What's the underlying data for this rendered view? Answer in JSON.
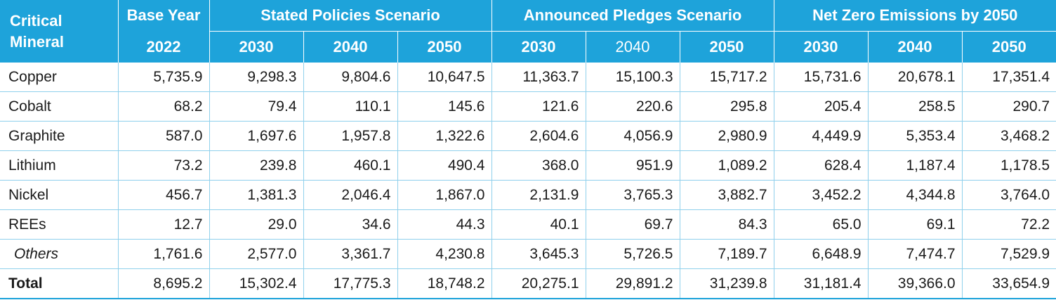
{
  "header": {
    "corner_label_line1": "Critical",
    "corner_label_line2": "Mineral",
    "base_year_label": "Base Year",
    "base_year": "2022",
    "groups": [
      {
        "label": "Stated Policies Scenario",
        "years": [
          "2030",
          "2040",
          "2050"
        ]
      },
      {
        "label": "Announced Pledges Scenario",
        "years": [
          "2030",
          "2040",
          "2050"
        ]
      },
      {
        "label": "Net Zero Emissions by 2050",
        "years": [
          "2030",
          "2040",
          "2050"
        ]
      }
    ]
  },
  "rows": [
    {
      "label": "Copper",
      "values": [
        "5,735.9",
        "9,298.3",
        "9,804.6",
        "10,647.5",
        "11,363.7",
        "15,100.3",
        "15,717.2",
        "15,731.6",
        "20,678.1",
        "17,351.4"
      ]
    },
    {
      "label": "Cobalt",
      "values": [
        "68.2",
        "79.4",
        "110.1",
        "145.6",
        "121.6",
        "220.6",
        "295.8",
        "205.4",
        "258.5",
        "290.7"
      ]
    },
    {
      "label": "Graphite",
      "values": [
        "587.0",
        "1,697.6",
        "1,957.8",
        "1,322.6",
        "2,604.6",
        "4,056.9",
        "2,980.9",
        "4,449.9",
        "5,353.4",
        "3,468.2"
      ]
    },
    {
      "label": "Lithium",
      "values": [
        "73.2",
        "239.8",
        "460.1",
        "490.4",
        "368.0",
        "951.9",
        "1,089.2",
        "628.4",
        "1,187.4",
        "1,178.5"
      ]
    },
    {
      "label": "Nickel",
      "values": [
        "456.7",
        "1,381.3",
        "2,046.4",
        "1,867.0",
        "2,131.9",
        "3,765.3",
        "3,882.7",
        "3,452.2",
        "4,344.8",
        "3,764.0"
      ]
    },
    {
      "label": "REEs",
      "values": [
        "12.7",
        "29.0",
        "34.6",
        "44.3",
        "40.1",
        "69.7",
        "84.3",
        "65.0",
        "69.1",
        "72.2"
      ]
    },
    {
      "label": "Others",
      "values": [
        "1,761.6",
        "2,577.0",
        "3,361.7",
        "4,230.8",
        "3,645.3",
        "5,726.5",
        "7,189.7",
        "6,648.9",
        "7,474.7",
        "7,529.9"
      ]
    },
    {
      "label": "Total",
      "values": [
        "8,695.2",
        "15,302.4",
        "17,775.3",
        "18,748.2",
        "20,275.1",
        "29,891.2",
        "31,239.8",
        "31,181.4",
        "39,366.0",
        "33,654.9"
      ]
    }
  ],
  "colors": {
    "header_bg": "#1ea3da",
    "header_text": "#ffffff",
    "grid_line": "#8fd0ec"
  }
}
